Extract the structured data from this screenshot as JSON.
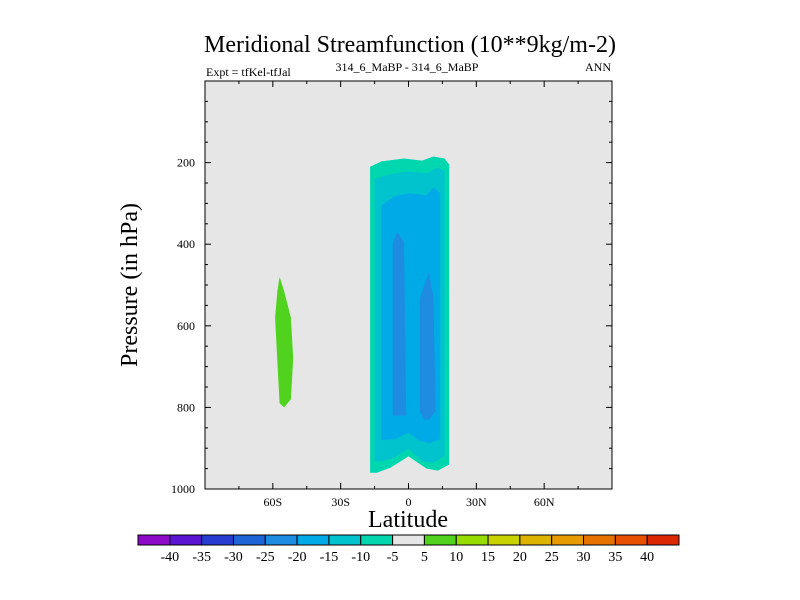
{
  "chart_data": {
    "type": "contour",
    "title": "Meridional Streamfunction (10**9kg/m-2)",
    "left_string": "Expt = tfKel-tfJal",
    "center_string": "314_6_MaBP - 314_6_MaBP",
    "right_string": "ANN",
    "xlabel": "Latitude",
    "ylabel": "Pressure (in hPa)",
    "xlim": [
      -90,
      90
    ],
    "ylim": [
      1000,
      0
    ],
    "y_reversed": true,
    "x_ticks": [
      {
        "value": -60,
        "label": "60S"
      },
      {
        "value": -30,
        "label": "30S"
      },
      {
        "value": 0,
        "label": "0"
      },
      {
        "value": 30,
        "label": "30N"
      },
      {
        "value": 60,
        "label": "60N"
      }
    ],
    "y_ticks": [
      {
        "value": 200,
        "label": "200"
      },
      {
        "value": 400,
        "label": "400"
      },
      {
        "value": 600,
        "label": "600"
      },
      {
        "value": 800,
        "label": "800"
      },
      {
        "value": 1000,
        "label": "1000"
      }
    ],
    "background_color": "#e6e6e6",
    "colorbar": {
      "labels": [
        "-40",
        "-35",
        "-30",
        "-25",
        "-20",
        "-15",
        "-10",
        "-5",
        "5",
        "10",
        "15",
        "20",
        "25",
        "30",
        "35",
        "40"
      ],
      "colors": [
        "#8c0ac8",
        "#5a14d2",
        "#283cd2",
        "#1e64d7",
        "#1e8ce1",
        "#00aae6",
        "#00c3cd",
        "#00d7af",
        "#e6e6e6",
        "#50d21e",
        "#96dc00",
        "#c8d200",
        "#dcb400",
        "#e69b00",
        "#e67300",
        "#e65000",
        "#dc2800"
      ]
    },
    "regions": [
      {
        "level": "-10 to -5",
        "color": "#00d7af",
        "polygon": [
          [
            -17,
            960
          ],
          [
            -17,
            210
          ],
          [
            -12,
            197
          ],
          [
            -2,
            190
          ],
          [
            6,
            195
          ],
          [
            11,
            185
          ],
          [
            16,
            190
          ],
          [
            18,
            205
          ],
          [
            18,
            940
          ],
          [
            13,
            955
          ],
          [
            8,
            950
          ],
          [
            0,
            920
          ],
          [
            -8,
            948
          ],
          [
            -14,
            960
          ]
        ]
      },
      {
        "level": "-15 to -10",
        "color": "#00c3cd",
        "polygon": [
          [
            -15,
            932
          ],
          [
            -15,
            240
          ],
          [
            -8,
            228
          ],
          [
            0,
            222
          ],
          [
            8,
            226
          ],
          [
            13,
            212
          ],
          [
            16,
            222
          ],
          [
            16,
            920
          ],
          [
            11,
            935
          ],
          [
            6,
            932
          ],
          [
            0,
            902
          ],
          [
            -7,
            925
          ],
          [
            -12,
            932
          ]
        ]
      },
      {
        "level": "-20 to -15",
        "color": "#00aae6",
        "polygon": [
          [
            -12,
            880
          ],
          [
            -12,
            305
          ],
          [
            -6,
            282
          ],
          [
            0,
            275
          ],
          [
            8,
            280
          ],
          [
            11,
            260
          ],
          [
            14,
            275
          ],
          [
            14,
            878
          ],
          [
            9,
            888
          ],
          [
            4,
            880
          ],
          [
            0,
            862
          ],
          [
            -6,
            878
          ]
        ]
      },
      {
        "level": "-25 to -20",
        "color": "#1e8ce1",
        "polygon": [
          [
            -7,
            820
          ],
          [
            -7,
            395
          ],
          [
            -5,
            370
          ],
          [
            -2,
            395
          ],
          [
            -1,
            820
          ]
        ]
      },
      {
        "level": "-25 to -20",
        "color": "#1e8ce1",
        "polygon": [
          [
            5,
            810
          ],
          [
            5,
            535
          ],
          [
            7,
            500
          ],
          [
            9,
            470
          ],
          [
            11,
            530
          ],
          [
            12,
            808
          ],
          [
            9,
            830
          ],
          [
            7,
            830
          ]
        ]
      },
      {
        "level": "5 to 10",
        "color": "#50d21e",
        "polygon": [
          [
            -57,
            480
          ],
          [
            -55,
            515
          ],
          [
            -52,
            580
          ],
          [
            -51,
            680
          ],
          [
            -52,
            780
          ],
          [
            -55,
            800
          ],
          [
            -57,
            790
          ],
          [
            -58,
            690
          ],
          [
            -59,
            580
          ],
          [
            -58,
            515
          ]
        ]
      }
    ]
  }
}
